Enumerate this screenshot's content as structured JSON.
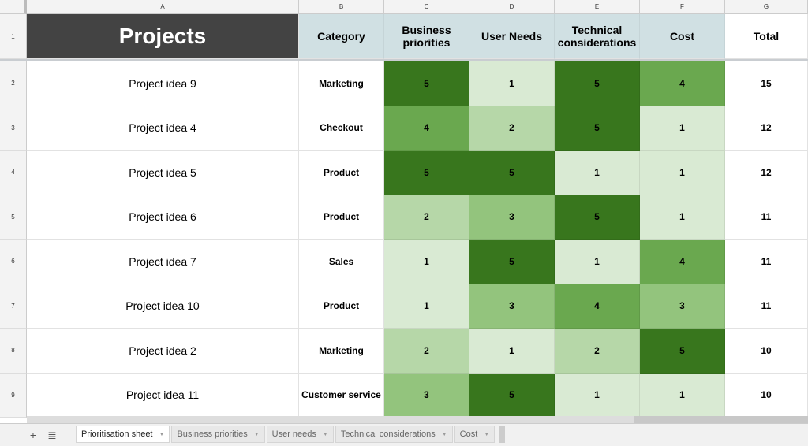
{
  "column_letters": [
    "A",
    "B",
    "C",
    "D",
    "E",
    "F",
    "G"
  ],
  "header": {
    "projects": "Projects",
    "category": "Category",
    "business": "Business priorities",
    "user": "User Needs",
    "technical": "Technical considerations",
    "cost": "Cost",
    "total": "Total"
  },
  "rows": [
    {
      "num": "2",
      "name": "Project idea 9",
      "category": "Marketing",
      "scores": [
        5,
        1,
        5,
        4
      ],
      "total": 15
    },
    {
      "num": "3",
      "name": "Project idea 4",
      "category": "Checkout",
      "scores": [
        4,
        2,
        5,
        1
      ],
      "total": 12
    },
    {
      "num": "4",
      "name": "Project idea 5",
      "category": "Product",
      "scores": [
        5,
        5,
        1,
        1
      ],
      "total": 12
    },
    {
      "num": "5",
      "name": "Project idea 6",
      "category": "Product",
      "scores": [
        2,
        3,
        5,
        1
      ],
      "total": 11
    },
    {
      "num": "6",
      "name": "Project idea 7",
      "category": "Sales",
      "scores": [
        1,
        5,
        1,
        4
      ],
      "total": 11
    },
    {
      "num": "7",
      "name": "Project idea 10",
      "category": "Product",
      "scores": [
        1,
        3,
        4,
        3
      ],
      "total": 11
    },
    {
      "num": "8",
      "name": "Project idea 2",
      "category": "Marketing",
      "scores": [
        2,
        1,
        2,
        5
      ],
      "total": 10
    },
    {
      "num": "9",
      "name": "Project idea 11",
      "category": "Customer service",
      "scores": [
        3,
        5,
        1,
        1
      ],
      "total": 10
    }
  ],
  "score_colors": {
    "1": "#d9ead3",
    "2": "#b6d7a8",
    "3": "#93c47d",
    "4": "#6aa84f",
    "5": "#38761d"
  },
  "sheet_tabs": [
    "Prioritisation sheet",
    "Business priorities",
    "User needs",
    "Technical considerations",
    "Cost"
  ]
}
